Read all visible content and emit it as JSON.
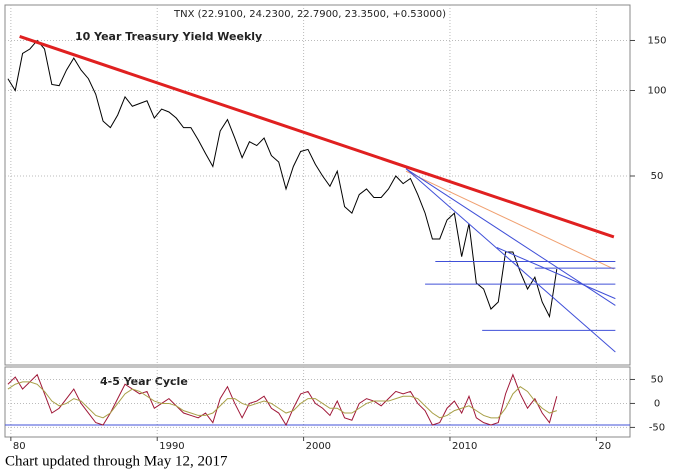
{
  "chart_data": [
    {
      "type": "line",
      "title": "TNX (22.9100, 24.2300, 22.7900, 23.3500, +0.53000)",
      "annotation": "10 Year Treasury Yield Weekly",
      "log_scale": true,
      "grid": true,
      "color": "#000000",
      "x": [
        1979.8,
        1980.3,
        1980.8,
        1981.3,
        1981.8,
        1982.3,
        1982.8,
        1983.3,
        1983.8,
        1984.3,
        1984.8,
        1985.3,
        1985.8,
        1986.3,
        1986.8,
        1987.3,
        1987.8,
        1988.3,
        1988.8,
        1989.3,
        1989.8,
        1990.3,
        1990.8,
        1991.3,
        1991.8,
        1992.3,
        1992.8,
        1993.3,
        1993.8,
        1994.3,
        1994.8,
        1995.3,
        1995.8,
        1996.3,
        1996.8,
        1997.3,
        1997.8,
        1998.3,
        1998.8,
        1999.3,
        1999.8,
        2000.3,
        2000.8,
        2001.3,
        2001.8,
        2002.3,
        2002.8,
        2003.3,
        2003.8,
        2004.3,
        2004.8,
        2005.3,
        2005.8,
        2006.3,
        2006.8,
        2007.3,
        2007.8,
        2008.3,
        2008.8,
        2009.3,
        2009.8,
        2010.3,
        2010.8,
        2011.3,
        2011.8,
        2012.3,
        2012.8,
        2013.3,
        2013.8,
        2014.3,
        2014.8,
        2015.3,
        2015.8,
        2016.3,
        2016.8,
        2017.3
      ],
      "values": [
        110,
        100,
        135,
        140,
        150,
        140,
        105,
        104,
        118,
        130,
        118,
        110,
        97,
        78,
        74,
        82,
        95,
        88,
        90,
        92,
        80,
        86,
        84,
        80,
        74,
        74,
        67,
        60,
        54,
        72,
        79,
        68,
        58,
        66,
        64,
        68,
        59,
        56,
        45,
        54,
        61,
        62,
        55,
        50,
        46,
        52,
        39,
        37,
        43,
        45,
        42,
        42,
        45,
        50,
        47,
        49,
        43,
        37,
        30,
        30,
        35,
        37,
        26,
        34,
        21,
        20,
        17,
        18,
        27,
        27,
        23,
        20,
        22,
        18,
        16,
        23.5
      ],
      "xlim": [
        1979.6,
        2022.3
      ],
      "ylim": [
        10.8,
        200
      ],
      "yticks": [
        50,
        100,
        150
      ],
      "trendlines": [
        {
          "x": [
            1980.6,
            2021.2
          ],
          "y": [
            155,
            30.5
          ],
          "color": "#e02020"
        },
        {
          "x": [
            2007.0,
            2021.2
          ],
          "y": [
            52,
            23.5
          ],
          "color": "#f0a070"
        },
        {
          "x": [
            2007.0,
            2021.3
          ],
          "y": [
            53,
            17.5
          ],
          "color": "#4050d8"
        },
        {
          "x": [
            2007.0,
            2021.3
          ],
          "y": [
            53,
            12
          ],
          "color": "#4050d8"
        },
        {
          "x": [
            2013.2,
            2021.3
          ],
          "y": [
            28,
            18.5
          ],
          "color": "#4050d8"
        },
        {
          "x": [
            2009.0,
            2021.3
          ],
          "y": [
            25,
            25
          ],
          "color": "#4050d8"
        },
        {
          "x": [
            2015.8,
            2021.3
          ],
          "y": [
            23.7,
            23.7
          ],
          "color": "#4050d8"
        },
        {
          "x": [
            2008.3,
            2021.3
          ],
          "y": [
            20.8,
            20.8
          ],
          "color": "#4050d8"
        },
        {
          "x": [
            2012.2,
            2021.3
          ],
          "y": [
            14.3,
            14.3
          ],
          "color": "#4050d8"
        }
      ]
    },
    {
      "type": "line",
      "annotation": "4-5 Year Cycle",
      "grid": true,
      "x": [
        1979.8,
        1980.3,
        1980.8,
        1981.3,
        1981.8,
        1982.3,
        1982.8,
        1983.3,
        1983.8,
        1984.3,
        1984.8,
        1985.3,
        1985.8,
        1986.3,
        1986.8,
        1987.3,
        1987.8,
        1988.3,
        1988.8,
        1989.3,
        1989.8,
        1990.3,
        1990.8,
        1991.3,
        1991.8,
        1992.3,
        1992.8,
        1993.3,
        1993.8,
        1994.3,
        1994.8,
        1995.3,
        1995.8,
        1996.3,
        1996.8,
        1997.3,
        1997.8,
        1998.3,
        1998.8,
        1999.3,
        1999.8,
        2000.3,
        2000.8,
        2001.3,
        2001.8,
        2002.3,
        2002.8,
        2003.3,
        2003.8,
        2004.3,
        2004.8,
        2005.3,
        2005.8,
        2006.3,
        2006.8,
        2007.3,
        2007.8,
        2008.3,
        2008.8,
        2009.3,
        2009.8,
        2010.3,
        2010.8,
        2011.3,
        2011.8,
        2012.3,
        2012.8,
        2013.3,
        2013.8,
        2014.3,
        2014.8,
        2015.3,
        2015.8,
        2016.3,
        2016.8,
        2017.3
      ],
      "series": [
        {
          "color": "#a01838",
          "values": [
            40,
            55,
            30,
            45,
            60,
            20,
            -20,
            -10,
            10,
            30,
            0,
            -20,
            -40,
            -45,
            -20,
            10,
            40,
            30,
            20,
            25,
            -10,
            0,
            10,
            -5,
            -20,
            -25,
            -30,
            -20,
            -40,
            10,
            35,
            0,
            -30,
            0,
            5,
            15,
            -10,
            -20,
            -45,
            -10,
            20,
            25,
            0,
            -10,
            -25,
            5,
            -30,
            -35,
            0,
            10,
            5,
            -5,
            10,
            25,
            20,
            25,
            0,
            -15,
            -45,
            -40,
            -10,
            5,
            -20,
            15,
            -30,
            -40,
            -45,
            -40,
            20,
            60,
            20,
            -10,
            10,
            -20,
            -40,
            15
          ]
        },
        {
          "color": "#a8a048",
          "values": [
            30,
            40,
            45,
            45,
            40,
            25,
            5,
            -5,
            0,
            10,
            5,
            -10,
            -25,
            -30,
            -20,
            0,
            20,
            30,
            25,
            15,
            5,
            0,
            0,
            -5,
            -15,
            -20,
            -25,
            -25,
            -20,
            -5,
            10,
            10,
            0,
            -5,
            0,
            5,
            0,
            -10,
            -20,
            -15,
            0,
            10,
            10,
            0,
            -10,
            -10,
            -20,
            -20,
            -10,
            0,
            5,
            5,
            5,
            10,
            15,
            15,
            10,
            -5,
            -20,
            -30,
            -25,
            -15,
            -10,
            -5,
            -15,
            -25,
            -30,
            -30,
            -10,
            20,
            35,
            25,
            5,
            -10,
            -20,
            -15
          ]
        }
      ],
      "xlim": [
        1979.6,
        2022.3
      ],
      "ylim": [
        -70,
        76
      ],
      "yticks": [
        50,
        0,
        -50
      ],
      "reference_lines": [
        {
          "value": -45,
          "color": "#4050d8"
        }
      ],
      "xticks": [
        {
          "value": 1980,
          "label": "80"
        },
        1990,
        2000,
        2010,
        {
          "value": 2020,
          "label": "20"
        }
      ]
    },
    {
      "type": "text",
      "footer": "Chart updated through May 12, 2017"
    }
  ]
}
